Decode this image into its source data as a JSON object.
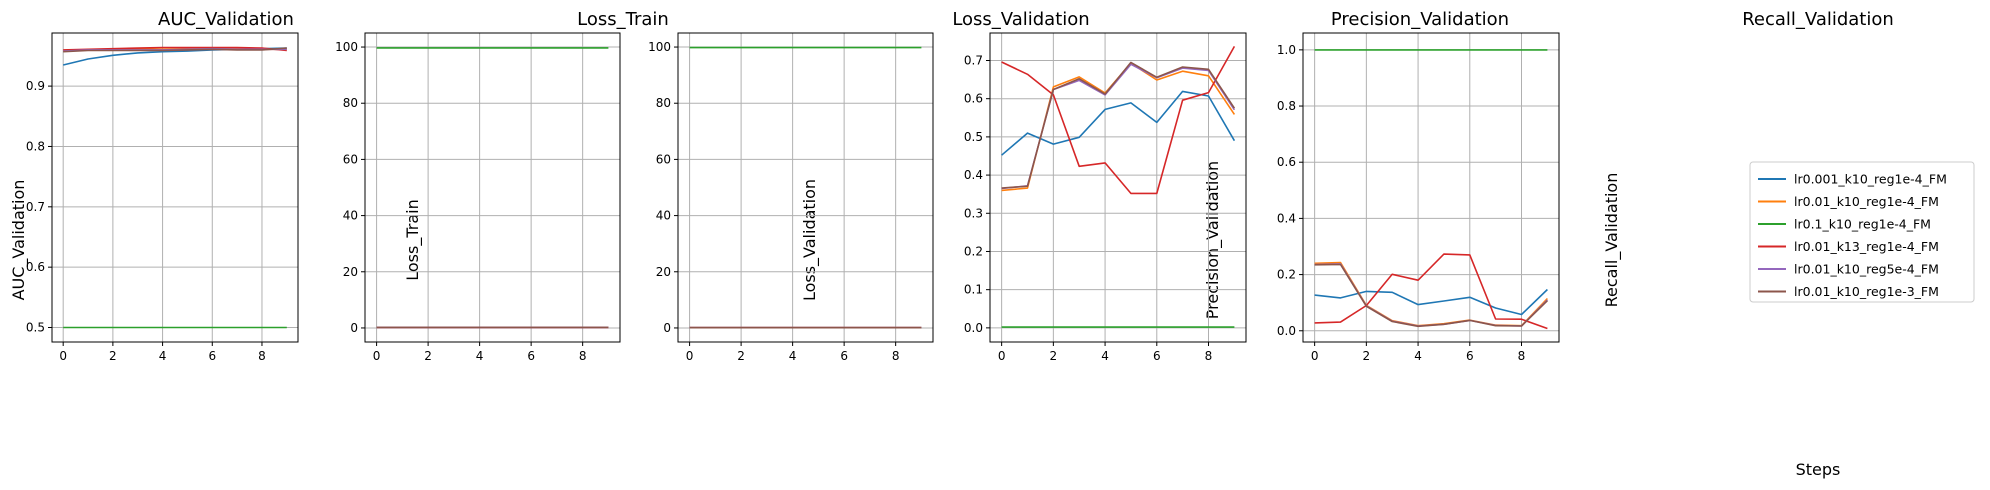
{
  "colors": {
    "series": [
      "#1f77b4",
      "#ff7f0e",
      "#2ca02c",
      "#d62728",
      "#9467bd",
      "#8c564b"
    ],
    "grid": "#b0b0b0",
    "axes": "#000000"
  },
  "legend": {
    "panel": 4,
    "placement": "center-right",
    "entries": [
      "lr0.001_k10_reg1e-4_FM",
      "lr0.01_k10_reg1e-4_FM",
      "lr0.1_k10_reg1e-4_FM",
      "lr0.01_k13_reg1e-4_FM",
      "lr0.01_k10_reg5e-4_FM",
      "lr0.01_k10_reg1e-3_FM"
    ]
  },
  "chart_data": [
    {
      "type": "line",
      "title": "AUC_Validation",
      "xlabel": "",
      "ylabel": "AUC_Validation",
      "grid": true,
      "x": [
        0,
        1,
        2,
        3,
        4,
        5,
        6,
        7,
        8,
        9
      ],
      "xlim": [
        -0.45,
        9.45
      ],
      "ylim": [
        0.476,
        0.988
      ],
      "xticks": [
        0,
        2,
        4,
        6,
        8
      ],
      "yticks": [
        0.5,
        0.6,
        0.7,
        0.8,
        0.9
      ],
      "series": [
        {
          "name": "lr0.001_k10_reg1e-4_FM",
          "values": [
            0.935,
            0.945,
            0.951,
            0.955,
            0.957,
            0.958,
            0.96,
            0.961,
            0.962,
            0.963
          ]
        },
        {
          "name": "lr0.01_k10_reg1e-4_FM",
          "values": [
            0.958,
            0.96,
            0.96,
            0.961,
            0.961,
            0.962,
            0.962,
            0.962,
            0.961,
            0.961
          ]
        },
        {
          "name": "lr0.1_k10_reg1e-4_FM",
          "values": [
            0.5,
            0.5,
            0.5,
            0.5,
            0.5,
            0.5,
            0.5,
            0.5,
            0.5,
            0.5
          ]
        },
        {
          "name": "lr0.01_k13_reg1e-4_FM",
          "values": [
            0.96,
            0.961,
            0.962,
            0.963,
            0.964,
            0.964,
            0.964,
            0.964,
            0.963,
            0.959
          ]
        },
        {
          "name": "lr0.01_k10_reg5e-4_FM",
          "values": [
            0.958,
            0.96,
            0.96,
            0.96,
            0.96,
            0.961,
            0.962,
            0.961,
            0.961,
            0.961
          ]
        },
        {
          "name": "lr0.01_k10_reg1e-3_FM",
          "values": [
            0.957,
            0.959,
            0.959,
            0.959,
            0.959,
            0.96,
            0.961,
            0.96,
            0.96,
            0.963
          ]
        }
      ]
    },
    {
      "type": "line",
      "title": "Loss_Train",
      "xlabel": "",
      "ylabel": "Loss_Train",
      "grid": true,
      "x": [
        0,
        1,
        2,
        3,
        4,
        5,
        6,
        7,
        8,
        9
      ],
      "xlim": [
        -0.45,
        9.45
      ],
      "ylim": [
        -5,
        105
      ],
      "xticks": [
        0,
        2,
        4,
        6,
        8
      ],
      "yticks": [
        0,
        20,
        40,
        60,
        80,
        100
      ],
      "series": [
        {
          "name": "lr0.001_k10_reg1e-4_FM",
          "values": [
            0.2,
            0.2,
            0.2,
            0.2,
            0.2,
            0.2,
            0.2,
            0.2,
            0.2,
            0.2
          ]
        },
        {
          "name": "lr0.01_k10_reg1e-4_FM",
          "values": [
            0.2,
            0.2,
            0.2,
            0.2,
            0.2,
            0.2,
            0.2,
            0.2,
            0.2,
            0.2
          ]
        },
        {
          "name": "lr0.1_k10_reg1e-4_FM",
          "values": [
            99.7,
            99.7,
            99.7,
            99.7,
            99.7,
            99.7,
            99.7,
            99.7,
            99.7,
            99.7
          ]
        },
        {
          "name": "lr0.01_k13_reg1e-4_FM",
          "values": [
            0.2,
            0.2,
            0.2,
            0.2,
            0.2,
            0.2,
            0.2,
            0.2,
            0.2,
            0.2
          ]
        },
        {
          "name": "lr0.01_k10_reg5e-4_FM",
          "values": [
            0.2,
            0.2,
            0.2,
            0.2,
            0.2,
            0.2,
            0.2,
            0.2,
            0.2,
            0.2
          ]
        },
        {
          "name": "lr0.01_k10_reg1e-3_FM",
          "values": [
            0.2,
            0.2,
            0.2,
            0.2,
            0.2,
            0.2,
            0.2,
            0.2,
            0.2,
            0.2
          ]
        }
      ]
    },
    {
      "type": "line",
      "title": "Loss_Validation",
      "xlabel": "",
      "ylabel": "Loss_Validation",
      "grid": true,
      "x": [
        0,
        1,
        2,
        3,
        4,
        5,
        6,
        7,
        8,
        9
      ],
      "xlim": [
        -0.45,
        9.45
      ],
      "ylim": [
        -5,
        105
      ],
      "xticks": [
        0,
        2,
        4,
        6,
        8
      ],
      "yticks": [
        0,
        20,
        40,
        60,
        80,
        100
      ],
      "series": [
        {
          "name": "lr0.001_k10_reg1e-4_FM",
          "values": [
            0.1,
            0.1,
            0.1,
            0.1,
            0.1,
            0.1,
            0.1,
            0.1,
            0.1,
            0.1
          ]
        },
        {
          "name": "lr0.01_k10_reg1e-4_FM",
          "values": [
            0.1,
            0.1,
            0.1,
            0.1,
            0.1,
            0.1,
            0.1,
            0.1,
            0.1,
            0.1
          ]
        },
        {
          "name": "lr0.1_k10_reg1e-4_FM",
          "values": [
            99.8,
            99.8,
            99.8,
            99.8,
            99.8,
            99.8,
            99.8,
            99.8,
            99.8,
            99.8
          ]
        },
        {
          "name": "lr0.01_k13_reg1e-4_FM",
          "values": [
            0.1,
            0.1,
            0.1,
            0.1,
            0.1,
            0.1,
            0.1,
            0.1,
            0.1,
            0.1
          ]
        },
        {
          "name": "lr0.01_k10_reg5e-4_FM",
          "values": [
            0.1,
            0.1,
            0.1,
            0.1,
            0.1,
            0.1,
            0.1,
            0.1,
            0.1,
            0.1
          ]
        },
        {
          "name": "lr0.01_k10_reg1e-3_FM",
          "values": [
            0.1,
            0.1,
            0.1,
            0.1,
            0.1,
            0.1,
            0.1,
            0.1,
            0.1,
            0.1
          ]
        }
      ]
    },
    {
      "type": "line",
      "title": "Precision_Validation",
      "xlabel": "",
      "ylabel": "Precision_Validation",
      "grid": true,
      "x": [
        0,
        1,
        2,
        3,
        4,
        5,
        6,
        7,
        8,
        9
      ],
      "xlim": [
        -0.45,
        9.45
      ],
      "ylim": [
        -0.037,
        0.772
      ],
      "xticks": [
        0,
        2,
        4,
        6,
        8
      ],
      "yticks": [
        0.0,
        0.1,
        0.2,
        0.3,
        0.4,
        0.5,
        0.6,
        0.7
      ],
      "series": [
        {
          "name": "lr0.001_k10_reg1e-4_FM",
          "values": [
            0.452,
            0.51,
            0.481,
            0.499,
            0.572,
            0.589,
            0.538,
            0.619,
            0.607,
            0.49
          ]
        },
        {
          "name": "lr0.01_k10_reg1e-4_FM",
          "values": [
            0.36,
            0.366,
            0.631,
            0.657,
            0.615,
            0.693,
            0.649,
            0.672,
            0.66,
            0.559
          ]
        },
        {
          "name": "lr0.1_k10_reg1e-4_FM",
          "values": [
            0.002,
            0.002,
            0.002,
            0.002,
            0.002,
            0.002,
            0.002,
            0.002,
            0.002,
            0.002
          ]
        },
        {
          "name": "lr0.01_k13_reg1e-4_FM",
          "values": [
            0.696,
            0.664,
            0.61,
            0.423,
            0.432,
            0.352,
            0.352,
            0.596,
            0.616,
            0.737
          ]
        },
        {
          "name": "lr0.01_k10_reg5e-4_FM",
          "values": [
            0.365,
            0.372,
            0.624,
            0.648,
            0.61,
            0.69,
            0.655,
            0.68,
            0.674,
            0.571
          ]
        },
        {
          "name": "lr0.01_k10_reg1e-3_FM",
          "values": [
            0.366,
            0.371,
            0.624,
            0.652,
            0.612,
            0.695,
            0.656,
            0.683,
            0.677,
            0.575
          ]
        }
      ]
    },
    {
      "type": "line",
      "title": "Recall_Validation",
      "xlabel": "Steps",
      "ylabel": "Recall_Validation",
      "grid": true,
      "x": [
        0,
        1,
        2,
        3,
        4,
        5,
        6,
        7,
        8,
        9
      ],
      "xlim": [
        -0.45,
        9.45
      ],
      "ylim": [
        -0.04,
        1.06
      ],
      "xticks": [
        0,
        2,
        4,
        6,
        8
      ],
      "yticks": [
        0.0,
        0.2,
        0.4,
        0.6,
        0.8,
        1.0
      ],
      "series": [
        {
          "name": "lr0.001_k10_reg1e-4_FM",
          "values": [
            0.127,
            0.117,
            0.14,
            0.137,
            0.093,
            0.106,
            0.119,
            0.081,
            0.058,
            0.147
          ]
        },
        {
          "name": "lr0.01_k10_reg1e-4_FM",
          "values": [
            0.24,
            0.243,
            0.09,
            0.036,
            0.018,
            0.025,
            0.038,
            0.02,
            0.018,
            0.115
          ]
        },
        {
          "name": "lr0.1_k10_reg1e-4_FM",
          "values": [
            1.0,
            1.0,
            1.0,
            1.0,
            1.0,
            1.0,
            1.0,
            1.0,
            1.0,
            1.0
          ]
        },
        {
          "name": "lr0.01_k13_reg1e-4_FM",
          "values": [
            0.028,
            0.031,
            0.09,
            0.201,
            0.18,
            0.273,
            0.27,
            0.042,
            0.041,
            0.008
          ]
        },
        {
          "name": "lr0.01_k10_reg5e-4_FM",
          "values": [
            0.236,
            0.238,
            0.088,
            0.034,
            0.017,
            0.023,
            0.037,
            0.019,
            0.017,
            0.11
          ]
        },
        {
          "name": "lr0.01_k10_reg1e-3_FM",
          "values": [
            0.235,
            0.236,
            0.087,
            0.033,
            0.016,
            0.023,
            0.037,
            0.018,
            0.017,
            0.107
          ]
        }
      ]
    }
  ]
}
